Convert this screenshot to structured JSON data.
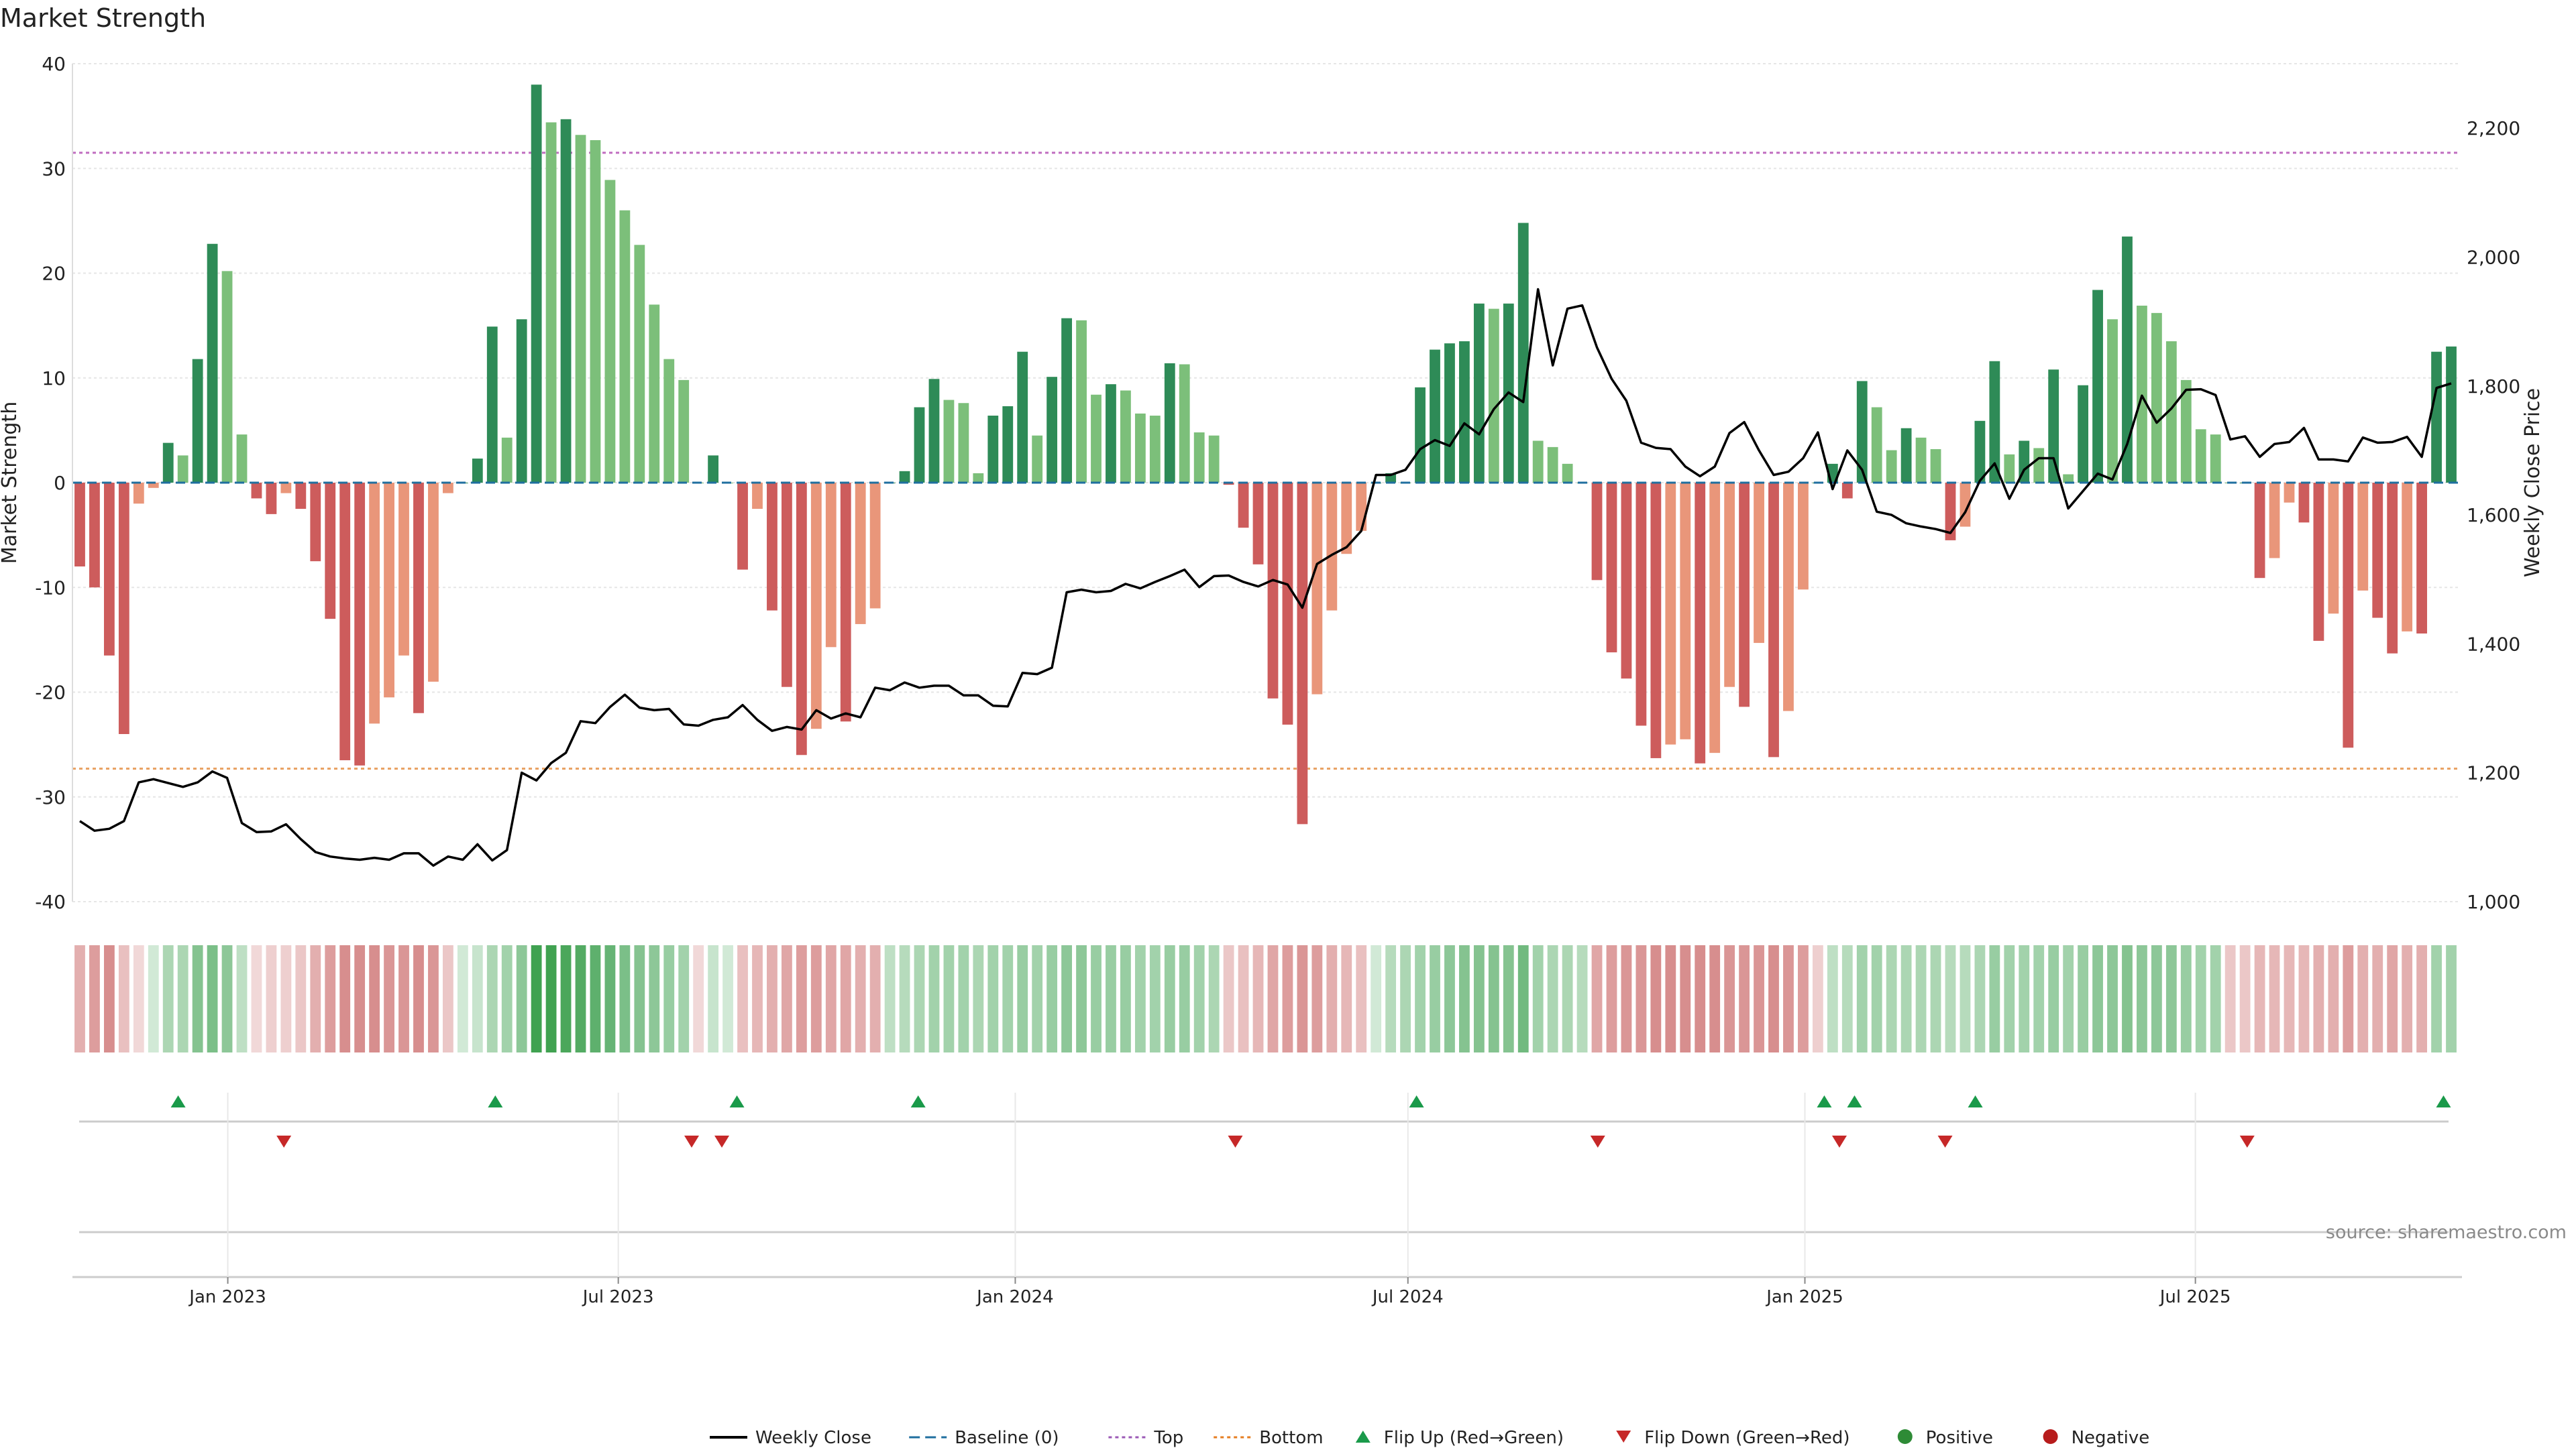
{
  "chart_data": {
    "type": "bar",
    "title": "Market Strength",
    "ylabel": "Market Strength",
    "y2label": "Weekly Close Price",
    "ylim": [
      -40,
      40
    ],
    "y2lim": [
      1000,
      2300
    ],
    "yticks": [
      -40,
      -30,
      -20,
      -10,
      0,
      10,
      20,
      30,
      40
    ],
    "y2ticks": [
      "1,000",
      "1,200",
      "1,400",
      "1,600",
      "1,800",
      "2,000",
      "2,200"
    ],
    "x_start": "2022-10-21",
    "x_end": "2025-10-31",
    "xticks": [
      {
        "date": "2023-01-01",
        "label": "Jan 2023"
      },
      {
        "date": "2023-07-01",
        "label": "Jul 2023"
      },
      {
        "date": "2024-01-01",
        "label": "Jan 2024"
      },
      {
        "date": "2024-07-01",
        "label": "Jul 2024"
      },
      {
        "date": "2025-01-01",
        "label": "Jan 2025"
      },
      {
        "date": "2025-07-01",
        "label": "Jul 2025"
      }
    ],
    "strength": [
      -8,
      -10,
      -16.5,
      -24,
      -2,
      -0.5,
      3.8,
      2.6,
      11.8,
      22.8,
      20.2,
      4.6,
      -1.5,
      -3,
      -1,
      -2.5,
      -7.5,
      -13,
      -26.5,
      -27,
      -23,
      -20.5,
      -16.5,
      -22,
      -19,
      -1,
      0,
      2.3,
      14.9,
      4.3,
      15.6,
      38,
      34.4,
      34.7,
      33.2,
      32.7,
      28.9,
      26,
      22.7,
      17,
      11.8,
      9.8,
      0,
      2.6,
      0,
      -8.3,
      -2.5,
      -12.2,
      -19.5,
      -26,
      -23.5,
      -15.7,
      -22.8,
      -13.5,
      -12,
      0,
      1.1,
      7.2,
      9.9,
      7.9,
      7.6,
      0.9,
      6.4,
      7.3,
      12.5,
      4.5,
      10.1,
      15.7,
      15.5,
      8.4,
      9.4,
      8.8,
      6.6,
      6.4,
      11.4,
      11.3,
      4.8,
      4.5,
      -0.2,
      -4.3,
      -7.8,
      -20.6,
      -23.1,
      -32.6,
      -20.2,
      -12.2,
      -6.8,
      -4.6,
      0,
      0.9,
      0,
      9.1,
      12.7,
      13.3,
      13.5,
      17.1,
      16.6,
      17.1,
      24.8,
      4,
      3.4,
      1.8,
      0,
      -9.3,
      -16.2,
      -18.7,
      -23.2,
      -26.3,
      -25,
      -24.5,
      -26.8,
      -25.8,
      -19.5,
      -21.4,
      -15.3,
      -26.2,
      -21.8,
      -10.2,
      0,
      1.8,
      -1.5,
      9.7,
      7.2,
      3.1,
      5.2,
      4.3,
      3.2,
      -5.5,
      -4.2,
      5.9,
      11.6,
      2.7,
      4,
      3.3,
      10.8,
      0.8,
      9.3,
      18.4,
      15.6,
      23.5,
      16.9,
      16.2,
      13.5,
      9.8,
      5.1,
      4.6,
      0,
      0,
      -9.1,
      -7.2,
      -1.9,
      -3.8,
      -15.1,
      -12.5,
      -25.3,
      -10.3,
      -12.9,
      -16.3,
      -14.2,
      -14.4,
      12.5,
      13
    ]
  },
  "chart_data_meta": {
    "price": [
      1125,
      1110,
      1113,
      1125,
      1185,
      1190,
      1184,
      1178,
      1185,
      1202,
      1192,
      1122,
      1108,
      1109,
      1120,
      1097,
      1077,
      1070,
      1067,
      1065,
      1068,
      1065,
      1075,
      1075,
      1056,
      1070,
      1065,
      1089,
      1064,
      1080,
      1200,
      1188,
      1215,
      1231,
      1280,
      1277,
      1302,
      1321,
      1301,
      1297,
      1299,
      1275,
      1273,
      1282,
      1286,
      1305,
      1282,
      1265,
      1271,
      1267,
      1297,
      1284,
      1292,
      1286,
      1332,
      1328,
      1340,
      1332,
      1335,
      1335,
      1320,
      1320,
      1304,
      1303,
      1355,
      1353,
      1363,
      1480,
      1484,
      1480,
      1482,
      1493,
      1486,
      1496,
      1505,
      1515,
      1488,
      1505,
      1506,
      1496,
      1489,
      1499,
      1492,
      1456,
      1524,
      1538,
      1550,
      1575,
      1662,
      1662,
      1670,
      1702,
      1716,
      1707,
      1742,
      1725,
      1764,
      1790,
      1775,
      1950,
      1832,
      1920,
      1925,
      1860,
      1811,
      1777,
      1712,
      1704,
      1702,
      1675,
      1660,
      1675,
      1727,
      1744,
      1700,
      1662,
      1667,
      1688,
      1728,
      1640,
      1700,
      1670,
      1605,
      1600,
      1587,
      1582,
      1578,
      1572,
      1604,
      1653,
      1680,
      1625,
      1670,
      1688,
      1688,
      1610,
      1637,
      1664,
      1655,
      1710,
      1785,
      1743,
      1765,
      1794,
      1795,
      1786,
      1717,
      1722,
      1690,
      1710,
      1713,
      1735,
      1686,
      1686,
      1683,
      1720,
      1712,
      1713,
      1721,
      1690,
      1797,
      1804
    ]
  },
  "heat_strip": {
    "levels": [
      -0.35,
      -0.45,
      -0.55,
      -0.25,
      -0.1,
      0.1,
      0.3,
      0.3,
      0.5,
      0.55,
      0.45,
      0.2,
      -0.1,
      -0.15,
      -0.15,
      -0.2,
      -0.35,
      -0.45,
      -0.55,
      -0.55,
      -0.55,
      -0.5,
      -0.5,
      -0.55,
      -0.5,
      -0.2,
      0.1,
      0.15,
      0.3,
      0.35,
      0.45,
      0.85,
      0.85,
      0.8,
      0.75,
      0.7,
      0.65,
      0.55,
      0.5,
      0.45,
      0.4,
      0.35,
      -0.1,
      0.15,
      0.1,
      -0.25,
      -0.3,
      -0.35,
      -0.4,
      -0.45,
      -0.45,
      -0.4,
      -0.4,
      -0.35,
      -0.35,
      0.2,
      0.25,
      0.3,
      0.35,
      0.35,
      0.35,
      0.3,
      0.35,
      0.35,
      0.4,
      0.35,
      0.4,
      0.45,
      0.45,
      0.4,
      0.4,
      0.4,
      0.35,
      0.35,
      0.4,
      0.4,
      0.35,
      0.3,
      -0.2,
      -0.25,
      -0.3,
      -0.4,
      -0.45,
      -0.5,
      -0.45,
      -0.35,
      -0.3,
      -0.25,
      0.1,
      0.25,
      0.3,
      0.35,
      0.4,
      0.45,
      0.5,
      0.5,
      0.5,
      0.5,
      0.6,
      0.35,
      0.3,
      0.3,
      0.25,
      -0.4,
      -0.45,
      -0.5,
      -0.5,
      -0.55,
      -0.55,
      -0.55,
      -0.55,
      -0.55,
      -0.5,
      -0.5,
      -0.5,
      -0.55,
      -0.5,
      -0.45,
      -0.15,
      0.2,
      0.25,
      0.35,
      0.35,
      0.3,
      0.3,
      0.3,
      0.3,
      0.25,
      0.25,
      0.3,
      0.4,
      0.35,
      0.35,
      0.35,
      0.4,
      0.35,
      0.4,
      0.45,
      0.45,
      0.5,
      0.45,
      0.45,
      0.45,
      0.4,
      0.35,
      0.35,
      -0.2,
      -0.2,
      -0.3,
      -0.3,
      -0.3,
      -0.3,
      -0.35,
      -0.35,
      -0.45,
      -0.35,
      -0.35,
      -0.4,
      -0.35,
      -0.35,
      0.35,
      0.35
    ]
  },
  "flip_up_dates": [
    "2022-12-09",
    "2023-05-05",
    "2023-08-25",
    "2023-11-17",
    "2024-07-05",
    "2025-01-10",
    "2025-01-24",
    "2025-03-21",
    "2025-10-24"
  ],
  "flip_down_dates": [
    "2023-01-27",
    "2023-08-04",
    "2023-08-18",
    "2024-04-12",
    "2024-09-27",
    "2025-01-17",
    "2025-03-07",
    "2025-07-25"
  ],
  "source": "source: sharemaestro.com",
  "legend": [
    {
      "label": "Weekly Close",
      "kind": "line",
      "color": "#000000"
    },
    {
      "label": "Baseline (0)",
      "kind": "dash",
      "color": "#1f6f9f"
    },
    {
      "label": "Top",
      "kind": "dot",
      "color": "#9b59b6"
    },
    {
      "label": "Bottom",
      "kind": "dot",
      "color": "#e67e22"
    },
    {
      "label": "Flip Up (Red→Green)",
      "kind": "up",
      "color": "#1a9a4a"
    },
    {
      "label": "Flip Down (Green→Red)",
      "kind": "down",
      "color": "#c62828"
    },
    {
      "label": "Positive",
      "kind": "circle",
      "color": "#2e8b36"
    },
    {
      "label": "Negative",
      "kind": "circle",
      "color": "#b71c1c"
    }
  ],
  "reference_lines": {
    "top": 31.5,
    "bottom": -27.3
  },
  "colors": {
    "pos_strong": "#2e8b57",
    "pos_weak": "#7cbf7a",
    "neg_strong": "#cd5c5c",
    "neg_weak": "#e9967a",
    "top_line": "#c06cc0",
    "bottom_line": "#e8a060",
    "baseline": "#1f6f9f"
  }
}
